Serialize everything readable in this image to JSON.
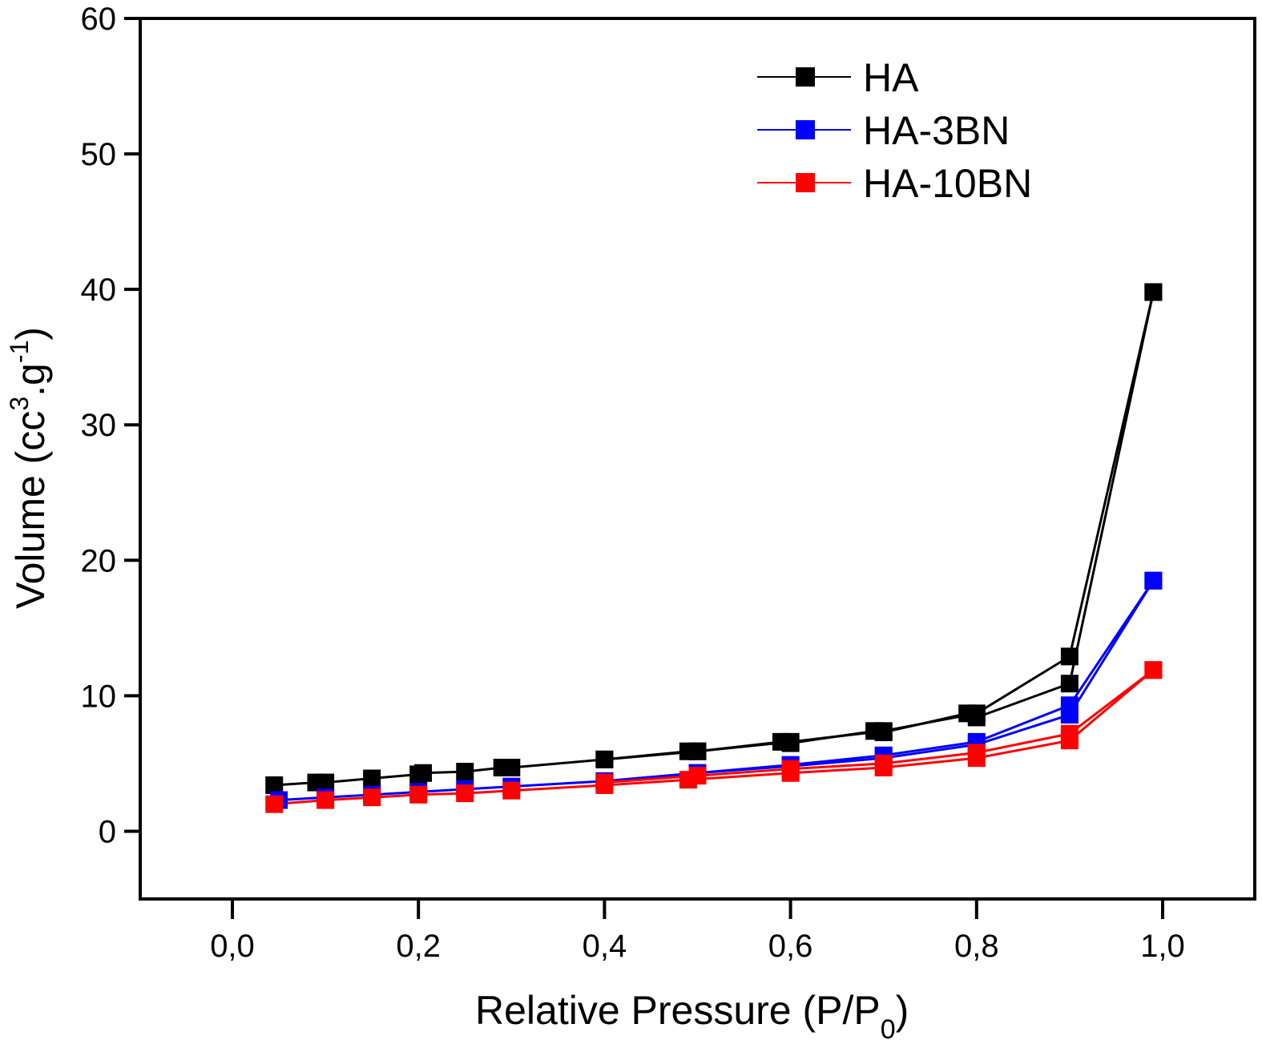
{
  "chart_data": {
    "type": "line",
    "title": "",
    "xlabel": "Relative Pressure (P/P",
    "xlabel_sub": "0",
    "xlabel_end": ")",
    "ylabel_main": "Volume (cc",
    "ylabel_sup1": "3",
    "ylabel_mid": ".g",
    "ylabel_sup2": "-1",
    "ylabel_end": ")",
    "xlim": [
      -0.1,
      1.1
    ],
    "ylim": [
      -5,
      60
    ],
    "xticks": [
      0.0,
      0.2,
      0.4,
      0.6,
      0.8,
      1.0
    ],
    "xtick_labels": [
      "0,0",
      "0,2",
      "0,4",
      "0,6",
      "0,8",
      "1,0"
    ],
    "yticks": [
      0,
      10,
      20,
      30,
      40,
      50,
      60
    ],
    "ytick_labels": [
      "0",
      "10",
      "20",
      "30",
      "40",
      "50",
      "60"
    ],
    "grid": false,
    "legend_position": "top-right",
    "marker": "square",
    "series": [
      {
        "name": "HA",
        "color": "#000000",
        "adsorption": {
          "x": [
            0.045,
            0.09,
            0.1,
            0.15,
            0.2,
            0.205,
            0.25,
            0.29,
            0.3,
            0.4,
            0.49,
            0.5,
            0.59,
            0.6,
            0.69,
            0.7,
            0.79,
            0.8,
            0.9,
            0.99
          ],
          "y": [
            3.4,
            3.6,
            3.6,
            3.9,
            4.2,
            4.3,
            4.4,
            4.7,
            4.7,
            5.3,
            5.9,
            5.9,
            6.6,
            6.5,
            7.4,
            7.3,
            8.7,
            8.4,
            10.9,
            39.8
          ]
        },
        "desorption": {
          "x": [
            0.99,
            0.9,
            0.8,
            0.7,
            0.6,
            0.5,
            0.4
          ],
          "y": [
            39.8,
            12.9,
            8.7,
            7.4,
            6.6,
            5.9,
            5.3
          ]
        }
      },
      {
        "name": "HA-3BN",
        "color": "#0000ff",
        "adsorption": {
          "x": [
            0.05,
            0.1,
            0.15,
            0.2,
            0.25,
            0.3,
            0.4,
            0.5,
            0.6,
            0.7,
            0.8,
            0.9,
            0.99
          ],
          "y": [
            2.3,
            2.5,
            2.7,
            2.9,
            3.1,
            3.3,
            3.7,
            4.3,
            4.8,
            5.4,
            6.4,
            8.6,
            18.5
          ]
        },
        "desorption": {
          "x": [
            0.99,
            0.9,
            0.8,
            0.7,
            0.6,
            0.5,
            0.4
          ],
          "y": [
            18.5,
            9.3,
            6.6,
            5.6,
            4.9,
            4.3,
            3.7
          ]
        }
      },
      {
        "name": "HA-10BN",
        "color": "#ff0000",
        "adsorption": {
          "x": [
            0.045,
            0.1,
            0.15,
            0.2,
            0.25,
            0.3,
            0.4,
            0.49,
            0.6,
            0.7,
            0.8,
            0.9,
            0.99
          ],
          "y": [
            2.0,
            2.3,
            2.5,
            2.7,
            2.8,
            3.0,
            3.4,
            3.8,
            4.3,
            4.7,
            5.4,
            6.7,
            11.9
          ]
        },
        "desorption": {
          "x": [
            0.99,
            0.9,
            0.8,
            0.7,
            0.6,
            0.5,
            0.4
          ],
          "y": [
            11.9,
            7.2,
            5.8,
            5.0,
            4.6,
            4.1,
            3.6
          ]
        }
      }
    ]
  }
}
